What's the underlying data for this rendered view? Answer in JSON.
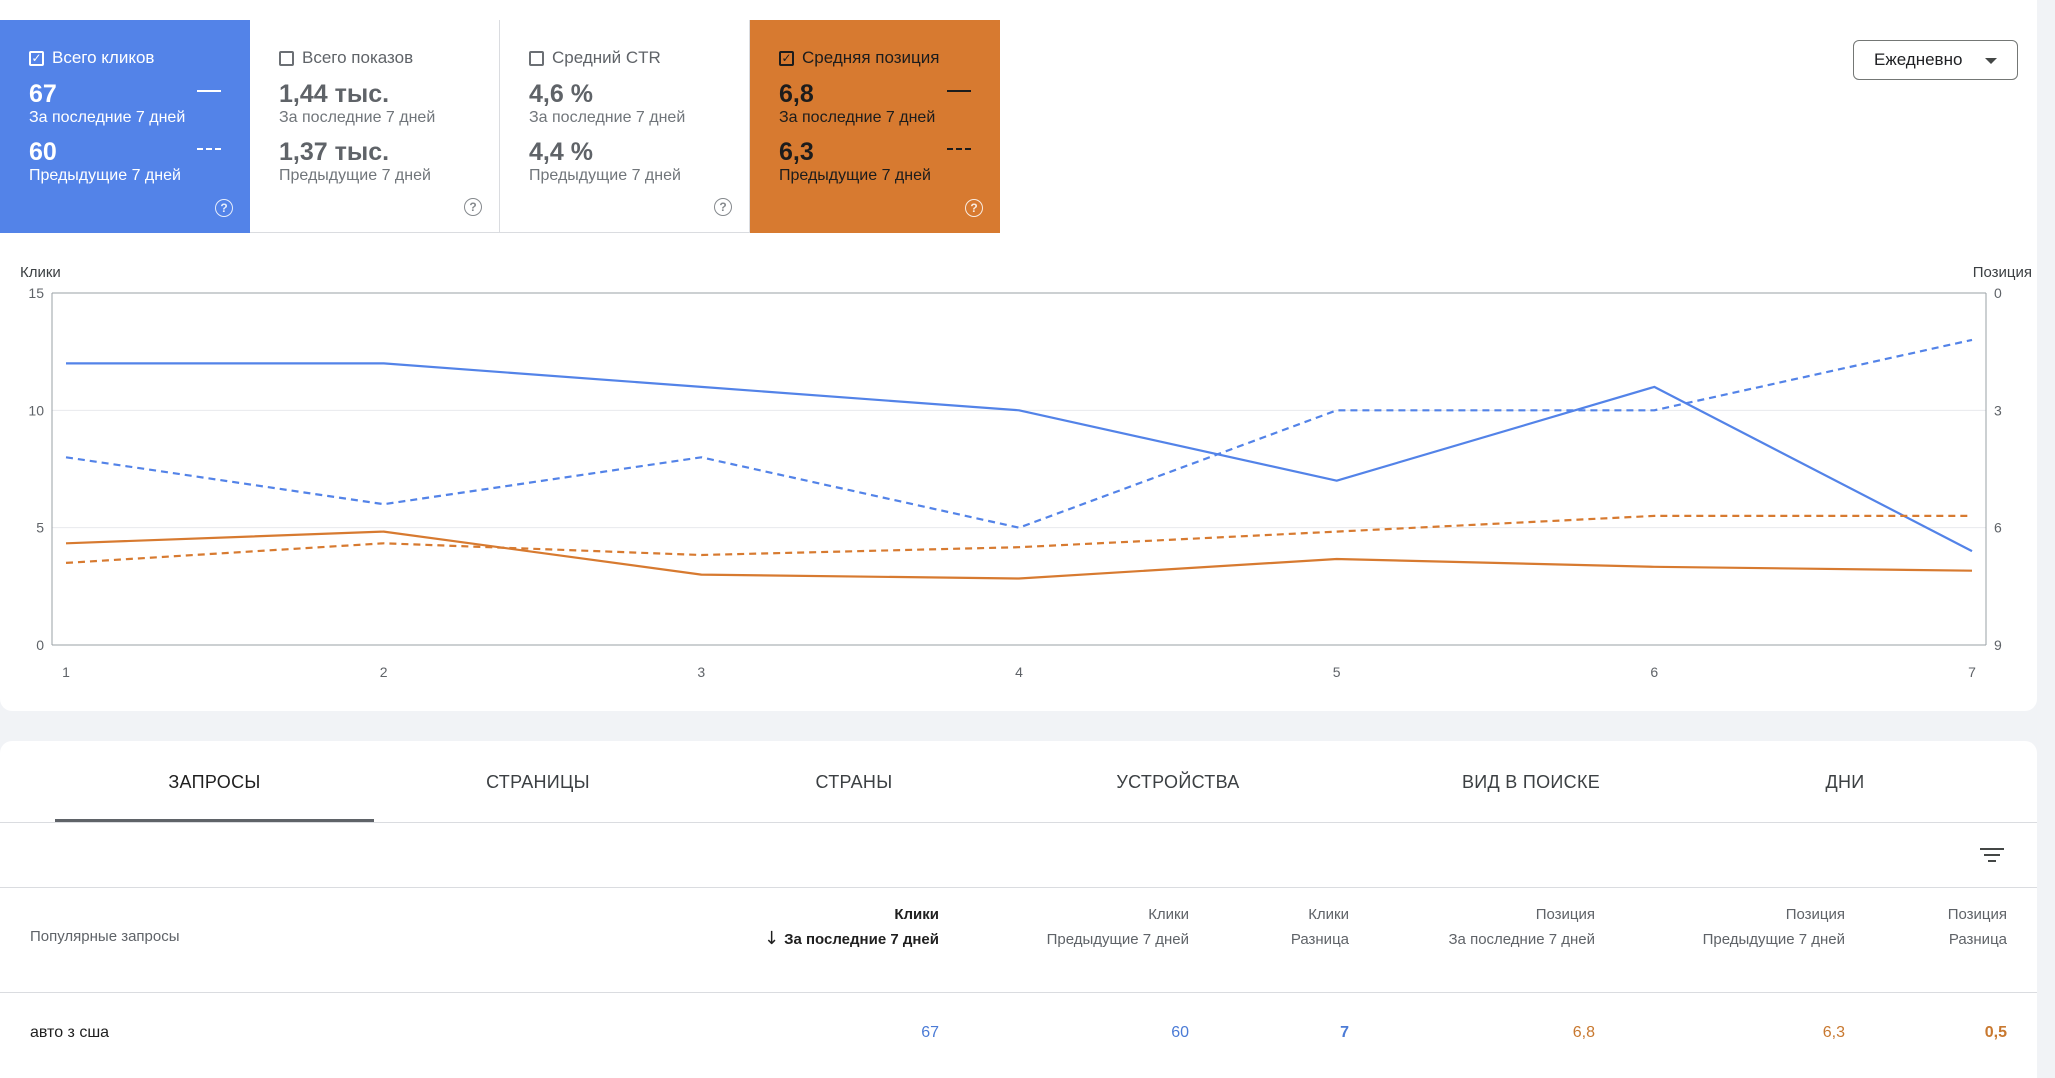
{
  "metrics": [
    {
      "key": "clicks",
      "label": "Всего кликов",
      "checked": true,
      "current": "67",
      "current_label": "За последние 7 дней",
      "previous": "60",
      "previous_label": "Предыдущие 7 дней",
      "color": "#5383e8"
    },
    {
      "key": "impressions",
      "label": "Всего показов",
      "checked": false,
      "current": "1,44 тыс.",
      "current_label": "За последние 7 дней",
      "previous": "1,37 тыс.",
      "previous_label": "Предыдущие 7 дней"
    },
    {
      "key": "ctr",
      "label": "Средний CTR",
      "checked": false,
      "current": "4,6 %",
      "current_label": "За последние 7 дней",
      "previous": "4,4 %",
      "previous_label": "Предыдущие 7 дней"
    },
    {
      "key": "position",
      "label": "Средняя позиция",
      "checked": true,
      "current": "6,8",
      "current_label": "За последние 7 дней",
      "previous": "6,3",
      "previous_label": "Предыдущие 7 дней",
      "color": "#d77a30"
    }
  ],
  "help_icon": "?",
  "period": {
    "label": "Ежедневно"
  },
  "chart_data": {
    "type": "line",
    "x": [
      1,
      2,
      3,
      4,
      5,
      6,
      7
    ],
    "left_axis": {
      "label": "Клики",
      "min": 0,
      "max": 15,
      "ticks": [
        0,
        5,
        10,
        15
      ]
    },
    "right_axis": {
      "label": "Позиция",
      "min": 0,
      "max": 9,
      "inverted": true,
      "ticks": [
        0,
        3,
        6,
        9
      ]
    },
    "series": [
      {
        "metric": "clicks",
        "period": "current",
        "axis": "left",
        "style": "solid",
        "color": "#5383e8",
        "values": [
          12,
          12,
          11,
          10,
          7,
          11,
          4
        ]
      },
      {
        "metric": "clicks",
        "period": "previous",
        "axis": "left",
        "style": "dashed",
        "color": "#5383e8",
        "values": [
          8,
          6,
          8,
          5,
          10,
          10,
          13
        ]
      },
      {
        "metric": "position",
        "period": "current",
        "axis": "right",
        "style": "solid",
        "color": "#d77a30",
        "values": [
          6.4,
          6.1,
          7.2,
          7.3,
          6.8,
          7.0,
          7.1
        ]
      },
      {
        "metric": "position",
        "period": "previous",
        "axis": "right",
        "style": "dashed",
        "color": "#d77a30",
        "values": [
          6.9,
          6.4,
          6.7,
          6.5,
          6.1,
          5.7,
          5.7
        ]
      }
    ],
    "grid": true
  },
  "tabs": [
    "ЗАПРОСЫ",
    "СТРАНИЦЫ",
    "СТРАНЫ",
    "УСТРОЙСТВА",
    "ВИД В ПОИСКЕ",
    "ДНИ"
  ],
  "table": {
    "query_header": "Популярные запросы",
    "columns": [
      {
        "title": "Клики",
        "sub": "За последние 7 дней",
        "sorted": true
      },
      {
        "title": "Клики",
        "sub": "Предыдущие 7 дней"
      },
      {
        "title": "Клики",
        "sub": "Разница"
      },
      {
        "title": "Позиция",
        "sub": "За последние 7 дней"
      },
      {
        "title": "Позиция",
        "sub": "Предыдущие 7 дней"
      },
      {
        "title": "Позиция",
        "sub": "Разница"
      }
    ],
    "rows": [
      {
        "query": "авто з сша",
        "values": [
          "67",
          "60",
          "7",
          "6,8",
          "6,3",
          "0,5"
        ]
      }
    ]
  }
}
